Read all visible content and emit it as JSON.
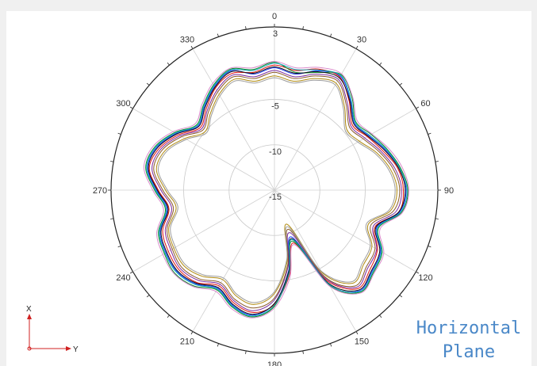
{
  "chart_data": {
    "type": "polar-line",
    "angle_ticks": [
      "0",
      "30",
      "60",
      "90",
      "120",
      "150",
      "180",
      "210",
      "240",
      "270",
      "300",
      "330"
    ],
    "radial_ticks": [
      -15,
      -10,
      -5,
      3
    ],
    "radial_range": [
      -15,
      3
    ],
    "grid": true,
    "axis_indicator": {
      "x_label": "X",
      "y_label": "Y"
    },
    "annotation": [
      "Horizontal",
      "Plane"
    ],
    "series": [
      {
        "color": "#1f3fff",
        "base_r": -1.8,
        "values": [
          -1.5,
          -2.0,
          -1.0,
          -0.5,
          -2.0,
          -3.5,
          -3.0,
          -2.0,
          -1.0,
          -0.5,
          -1.0,
          -3.0,
          -1.5,
          -1.0,
          -0.5,
          -3.0,
          -9.5,
          -6.0,
          -2.5,
          -1.0,
          -1.5,
          -2.5,
          -1.5,
          -1.0,
          -1.2,
          -1.6,
          -3.0,
          -2.0,
          -0.8,
          -1.2,
          -2.5,
          -4.0,
          -3.0,
          -1.8,
          -1.0,
          -2.0
        ]
      },
      {
        "color": "#e01010",
        "base_r": -1.6,
        "values": [
          -1.2,
          -1.6,
          -0.8,
          -0.6,
          -2.2,
          -3.8,
          -3.2,
          -2.3,
          -1.2,
          -0.8,
          -1.1,
          -3.2,
          -1.9,
          -1.3,
          -0.8,
          -3.5,
          -8.8,
          -5.5,
          -2.4,
          -1.3,
          -1.8,
          -2.8,
          -1.7,
          -1.3,
          -1.5,
          -1.9,
          -3.2,
          -2.2,
          -1.0,
          -1.5,
          -2.8,
          -4.3,
          -3.3,
          -2.0,
          -1.3,
          -1.8
        ]
      },
      {
        "color": "#0a8a2a",
        "base_r": -1.4,
        "values": [
          -0.9,
          -1.8,
          -1.2,
          -0.3,
          -1.7,
          -3.3,
          -2.7,
          -1.8,
          -0.9,
          -0.3,
          -0.8,
          -2.8,
          -1.3,
          -0.8,
          -0.3,
          -2.8,
          -9.0,
          -5.8,
          -2.2,
          -0.8,
          -1.3,
          -2.3,
          -1.2,
          -0.7,
          -1.0,
          -1.4,
          -2.8,
          -1.8,
          -0.6,
          -1.0,
          -2.3,
          -3.8,
          -2.8,
          -1.6,
          -0.8,
          -1.5
        ]
      },
      {
        "color": "#7a2aa0",
        "base_r": -1.9,
        "values": [
          -1.8,
          -2.3,
          -1.4,
          -0.9,
          -2.5,
          -4.0,
          -3.5,
          -2.5,
          -1.5,
          -1.0,
          -1.4,
          -3.4,
          -2.0,
          -1.6,
          -1.0,
          -3.8,
          -10.0,
          -6.4,
          -2.9,
          -1.5,
          -2.0,
          -3.0,
          -2.0,
          -1.5,
          -1.8,
          -2.2,
          -3.5,
          -2.5,
          -1.3,
          -1.7,
          -3.0,
          -4.5,
          -3.5,
          -2.3,
          -1.5,
          -2.3
        ]
      },
      {
        "color": "#b08a10",
        "base_r": -2.2,
        "values": [
          -2.4,
          -2.8,
          -1.9,
          -1.4,
          -3.0,
          -4.6,
          -4.2,
          -3.0,
          -2.0,
          -1.5,
          -2.0,
          -4.0,
          -2.6,
          -2.2,
          -1.6,
          -4.5,
          -11.0,
          -7.0,
          -3.6,
          -2.2,
          -2.6,
          -3.6,
          -2.6,
          -2.0,
          -2.2,
          -2.6,
          -4.0,
          -3.0,
          -1.8,
          -2.2,
          -3.6,
          -5.0,
          -4.0,
          -2.8,
          -2.0,
          -2.8
        ]
      },
      {
        "color": "#111111",
        "base_r": -1.7,
        "values": [
          -1.4,
          -1.9,
          -1.1,
          -0.7,
          -2.1,
          -3.6,
          -3.1,
          -2.1,
          -1.1,
          -0.6,
          -1.1,
          -3.1,
          -1.6,
          -1.1,
          -0.6,
          -3.2,
          -9.3,
          -5.9,
          -2.5,
          -1.1,
          -1.6,
          -2.6,
          -1.6,
          -1.1,
          -1.3,
          -1.7,
          -3.1,
          -2.1,
          -0.9,
          -1.3,
          -2.6,
          -4.1,
          -3.1,
          -1.9,
          -1.1,
          -1.9
        ]
      },
      {
        "color": "#12a6b8",
        "base_r": -1.5,
        "values": [
          -1.0,
          -1.5,
          -0.9,
          -0.4,
          -1.9,
          -3.4,
          -2.9,
          -1.9,
          -1.0,
          -0.4,
          -0.9,
          -2.9,
          -1.4,
          -0.9,
          -0.4,
          -3.0,
          -9.2,
          -5.7,
          -2.3,
          -0.9,
          -1.4,
          -2.4,
          -1.4,
          -0.9,
          -1.1,
          -1.5,
          -2.9,
          -1.9,
          -0.7,
          -1.1,
          -2.4,
          -3.9,
          -2.9,
          -1.7,
          -0.9,
          -1.6
        ]
      },
      {
        "color": "#d98acb",
        "base_r": -1.3,
        "values": [
          -0.8,
          -1.3,
          -0.6,
          -0.2,
          -1.6,
          -3.1,
          -2.6,
          -1.6,
          -0.7,
          -0.2,
          -0.7,
          -2.6,
          -1.1,
          -0.7,
          -0.2,
          -2.7,
          -8.6,
          -5.2,
          -2.0,
          -0.7,
          -1.1,
          -2.1,
          -1.1,
          -0.6,
          -0.8,
          -1.2,
          -2.6,
          -1.6,
          -0.4,
          -0.8,
          -2.1,
          -3.6,
          -2.6,
          -1.4,
          -0.7,
          -1.3
        ]
      },
      {
        "color": "#8a5a2a",
        "base_r": -2.0,
        "values": [
          -2.0,
          -2.5,
          -1.6,
          -1.1,
          -2.7,
          -4.2,
          -3.7,
          -2.7,
          -1.7,
          -1.2,
          -1.7,
          -3.7,
          -2.2,
          -1.8,
          -1.2,
          -4.0,
          -10.4,
          -6.6,
          -3.1,
          -1.8,
          -2.2,
          -3.2,
          -2.2,
          -1.7,
          -2.0,
          -2.4,
          -3.7,
          -2.7,
          -1.5,
          -1.9,
          -3.2,
          -4.7,
          -3.7,
          -2.5,
          -1.7,
          -2.5
        ]
      },
      {
        "color": "#9c9c9c",
        "base_r": -2.4,
        "values": [
          -2.6,
          -3.0,
          -2.1,
          -1.6,
          -3.2,
          -4.8,
          -4.4,
          -3.2,
          -2.2,
          -1.7,
          -2.2,
          -4.2,
          -2.8,
          -2.4,
          -1.8,
          -4.7,
          -10.7,
          -7.2,
          -3.8,
          -2.4,
          -2.8,
          -3.8,
          -2.8,
          -2.2,
          -2.4,
          -2.8,
          -4.2,
          -3.2,
          -2.0,
          -2.4,
          -3.8,
          -5.2,
          -4.2,
          -3.0,
          -2.2,
          -3.0
        ]
      }
    ]
  }
}
